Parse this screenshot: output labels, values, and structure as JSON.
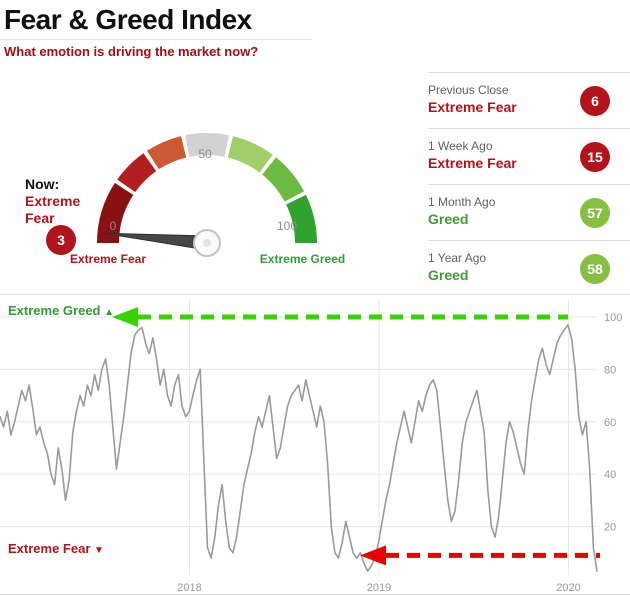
{
  "header": {
    "title": "Fear & Greed Index",
    "subtitle": "What emotion is driving the market now?"
  },
  "theme": {
    "red": "#b3131b",
    "green": "#3f9c35",
    "subtitle_red": "#a50d12"
  },
  "gauge": {
    "now_label": "Now:",
    "now_sentiment": "Extreme Fear",
    "score": 3,
    "score_badge_color": "#b3131b",
    "tick_labels": {
      "left": "0",
      "mid": "50",
      "right": "100"
    },
    "axis_left_label": "Extreme Fear",
    "axis_right_label": "Extreme Greed",
    "axis_left_color": "#b3131b",
    "axis_right_color": "#2f9e31",
    "segments": [
      {
        "from": 0,
        "to": 19,
        "color": "#8a1111"
      },
      {
        "from": 19,
        "to": 31,
        "color": "#b11e1e"
      },
      {
        "from": 31,
        "to": 43,
        "color": "#cc5a33"
      },
      {
        "from": 43,
        "to": 57,
        "color": "#d2d2d2"
      },
      {
        "from": 57,
        "to": 71,
        "color": "#a2ce6a"
      },
      {
        "from": 71,
        "to": 85,
        "color": "#6cbb40"
      },
      {
        "from": 85,
        "to": 100,
        "color": "#2ea32d"
      }
    ]
  },
  "stats": {
    "rows": [
      {
        "period": "Previous Close",
        "sentiment": "Extreme Fear",
        "value": "6",
        "text_color": "#b3131b",
        "badge_color": "#b3131b"
      },
      {
        "period": "1 Week Ago",
        "sentiment": "Extreme Fear",
        "value": "15",
        "text_color": "#b3131b",
        "badge_color": "#b3131b"
      },
      {
        "period": "1 Month Ago",
        "sentiment": "Greed",
        "value": "57",
        "text_color": "#3f9c35",
        "badge_color": "#85c043"
      },
      {
        "period": "1 Year Ago",
        "sentiment": "Greed",
        "value": "58",
        "text_color": "#3f9c35",
        "badge_color": "#85c043"
      }
    ]
  },
  "chart_data": {
    "type": "line",
    "series_name": "Fear & Greed Index over time",
    "x_start": 2017.0,
    "x_end": 2020.15,
    "x_ticks": [
      2018,
      2019,
      2020
    ],
    "x_tick_labels": [
      "2018",
      "2019",
      "2020"
    ],
    "y_ticks": [
      20,
      40,
      60,
      80,
      100
    ],
    "ylim": [
      0,
      108
    ],
    "grid": true,
    "legend": "none",
    "line_color": "#9a9a9a",
    "values": [
      62,
      58,
      64,
      55,
      60,
      66,
      72,
      68,
      74,
      65,
      55,
      58,
      52,
      48,
      40,
      36,
      50,
      42,
      30,
      38,
      56,
      64,
      70,
      66,
      74,
      70,
      78,
      72,
      80,
      84,
      74,
      58,
      42,
      52,
      62,
      74,
      86,
      93,
      95,
      96,
      90,
      86,
      92,
      84,
      74,
      80,
      70,
      66,
      74,
      78,
      66,
      62,
      64,
      70,
      76,
      80,
      45,
      12,
      8,
      16,
      28,
      36,
      22,
      12,
      10,
      16,
      26,
      36,
      42,
      48,
      56,
      62,
      58,
      64,
      70,
      58,
      46,
      50,
      58,
      66,
      70,
      72,
      74,
      68,
      76,
      70,
      64,
      58,
      66,
      60,
      44,
      20,
      10,
      8,
      14,
      22,
      16,
      10,
      8,
      10,
      6,
      3,
      5,
      8,
      14,
      22,
      30,
      36,
      44,
      52,
      58,
      64,
      58,
      52,
      60,
      68,
      64,
      70,
      74,
      76,
      72,
      58,
      44,
      30,
      22,
      26,
      38,
      52,
      60,
      64,
      68,
      72,
      64,
      56,
      34,
      20,
      16,
      24,
      38,
      52,
      60,
      56,
      50,
      44,
      40,
      56,
      68,
      76,
      84,
      88,
      82,
      78,
      84,
      90,
      93,
      95,
      97,
      92,
      80,
      62,
      55,
      60,
      42,
      12,
      3
    ],
    "annotations": [
      {
        "text": "Extreme Greed",
        "glyph": "▲",
        "position": "top-left",
        "color": "#2f9e31",
        "arrow_color": "#36d300",
        "arrow_value": 100
      },
      {
        "text": "Extreme Fear",
        "glyph": "▼",
        "position": "bottom-left",
        "color": "#b3131b",
        "arrow_color": "#e60000",
        "arrow_value": 9
      }
    ]
  }
}
